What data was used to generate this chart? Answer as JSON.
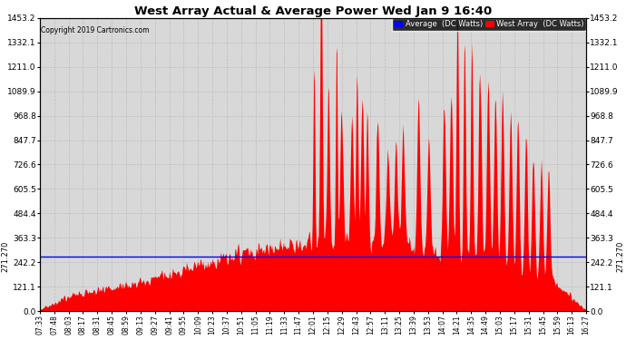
{
  "title": "West Array Actual & Average Power Wed Jan 9 16:40",
  "copyright": "Copyright 2019 Cartronics.com",
  "legend_labels": [
    "Average  (DC Watts)",
    "West Array  (DC Watts)"
  ],
  "legend_colors": [
    "#0000ff",
    "#ff0000"
  ],
  "average_value": 271.27,
  "ymin": 0.0,
  "ymax": 1453.2,
  "yticks": [
    0.0,
    121.1,
    242.2,
    363.3,
    484.4,
    605.5,
    726.6,
    847.7,
    968.8,
    1089.9,
    1211.0,
    1332.1,
    1453.2
  ],
  "bg_color": "#ffffff",
  "plot_bg_color": "#d8d8d8",
  "grid_color": "#bbbbbb",
  "fill_color": "#ff0000",
  "avg_line_color": "#0000ff",
  "left_ylabel": "271.270",
  "right_ylabel": "271.270",
  "xtick_labels": [
    "07:33",
    "07:48",
    "08:03",
    "08:17",
    "08:31",
    "08:45",
    "08:59",
    "09:13",
    "09:27",
    "09:41",
    "09:55",
    "10:09",
    "10:23",
    "10:37",
    "10:51",
    "11:05",
    "11:19",
    "11:33",
    "11:47",
    "12:01",
    "12:15",
    "12:29",
    "12:43",
    "12:57",
    "13:11",
    "13:25",
    "13:39",
    "13:53",
    "14:07",
    "14:21",
    "14:35",
    "14:49",
    "15:03",
    "15:17",
    "15:31",
    "15:45",
    "15:59",
    "16:13",
    "16:27"
  ],
  "figwidth": 6.9,
  "figheight": 3.75,
  "dpi": 100
}
